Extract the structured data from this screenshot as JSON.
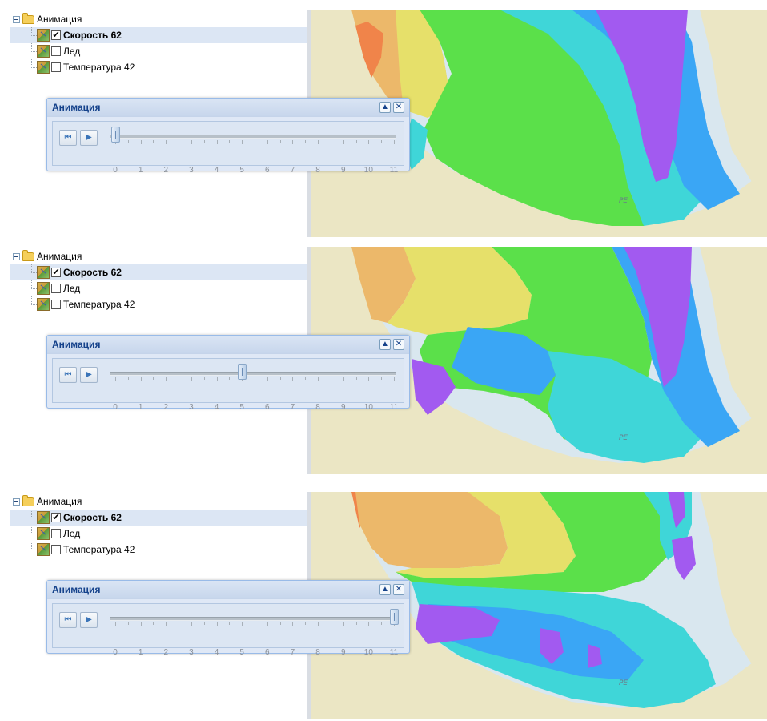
{
  "tree": {
    "root_label": "Анимация",
    "layers": [
      {
        "label": "Скорость 62",
        "checked": true,
        "selected": true
      },
      {
        "label": "Лед",
        "checked": false,
        "selected": false
      },
      {
        "label": "Температура 42",
        "checked": false,
        "selected": false
      }
    ]
  },
  "animation": {
    "title": "Анимация",
    "collapse_icon": "chevron-up-icon",
    "close_icon": "close-icon",
    "first_button_icon": "skip-to-start-icon",
    "play_button_icon": "play-icon",
    "ticks": [
      "0",
      "1",
      "2",
      "3",
      "4",
      "5",
      "6",
      "7",
      "8",
      "9",
      "10",
      "11"
    ]
  },
  "map": {
    "edge_label": "PE"
  },
  "frames": [
    {
      "slider_value": 0
    },
    {
      "slider_value": 5
    },
    {
      "slider_value": 11
    }
  ],
  "slider": {
    "min": 0,
    "max": 11
  },
  "colors": {
    "panel_title": "#15428b",
    "selection": "#dce6f4",
    "speed_orange": "#f0844a",
    "speed_tan": "#ecb86a",
    "speed_yellow": "#e6e06a",
    "speed_green": "#5be04a",
    "speed_teal": "#3fd6d8",
    "speed_blue": "#3aa6f5",
    "speed_purple": "#a25af0",
    "land": "#ebe6c4"
  }
}
